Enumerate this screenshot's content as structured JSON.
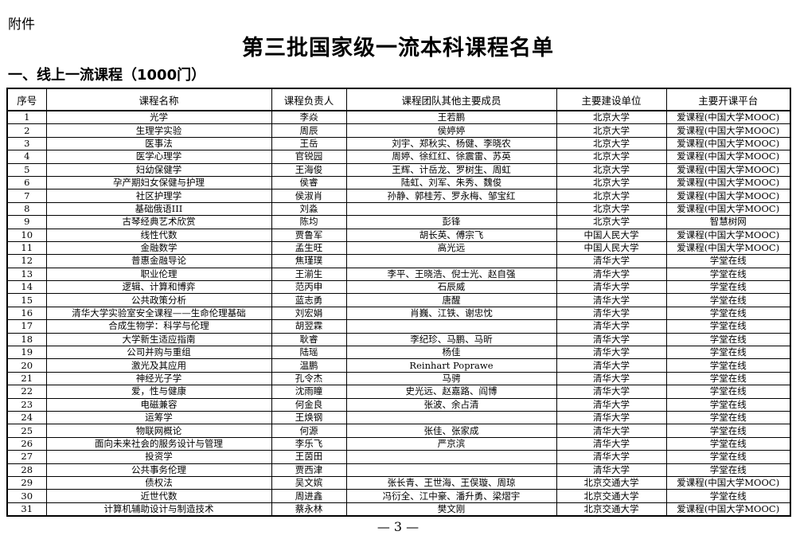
{
  "attachment_label": "附件",
  "title": "第三批国家级一流本科课程名单",
  "section_heading": "一、线上一流课程（1000门）",
  "table": {
    "headers": [
      "序号",
      "课程名称",
      "课程负责人",
      "课程团队其他主要成员",
      "主要建设单位",
      "主要开课平台"
    ],
    "rows": [
      [
        "1",
        "光学",
        "李焱",
        "王若鹏",
        "北京大学",
        "爱课程(中国大学MOOC)"
      ],
      [
        "2",
        "生理学实验",
        "周辰",
        "侯婷婷",
        "北京大学",
        "爱课程(中国大学MOOC)"
      ],
      [
        "3",
        "医事法",
        "王岳",
        "刘宇、郑秋实、杨健、李晓农",
        "北京大学",
        "爱课程(中国大学MOOC)"
      ],
      [
        "4",
        "医学心理学",
        "官锐园",
        "周婷、徐红红、徐震雷、苏英",
        "北京大学",
        "爱课程(中国大学MOOC)"
      ],
      [
        "5",
        "妇幼保健学",
        "王海俊",
        "王辉、计岳龙、罗树生、周虹",
        "北京大学",
        "爱课程(中国大学MOOC)"
      ],
      [
        "6",
        "孕产期妇女保健与护理",
        "侯睿",
        "陆虹、刘军、朱秀、魏俊",
        "北京大学",
        "爱课程(中国大学MOOC)"
      ],
      [
        "7",
        "社区护理学",
        "侯淑肖",
        "孙静、郭桂芳、罗永梅、邹宝红",
        "北京大学",
        "爱课程(中国大学MOOC)"
      ],
      [
        "8",
        "基础俄语III",
        "刘淼",
        "",
        "北京大学",
        "爱课程(中国大学MOOC)"
      ],
      [
        "9",
        "古琴经典艺术欣赏",
        "陈均",
        "彭锋",
        "北京大学",
        "智慧树网"
      ],
      [
        "10",
        "线性代数",
        "贾鲁军",
        "胡长英、傅宗飞",
        "中国人民大学",
        "爱课程(中国大学MOOC)"
      ],
      [
        "11",
        "金融数学",
        "孟生旺",
        "高光远",
        "中国人民大学",
        "爱课程(中国大学MOOC)"
      ],
      [
        "12",
        "普惠金融导论",
        "焦瑾璞",
        "",
        "清华大学",
        "学堂在线"
      ],
      [
        "13",
        "职业伦理",
        "王湔生",
        "李平、王晓浩、倪士光、赵自强",
        "清华大学",
        "学堂在线"
      ],
      [
        "14",
        "逻辑、计算和博弈",
        "范丙申",
        "石辰威",
        "清华大学",
        "学堂在线"
      ],
      [
        "15",
        "公共政策分析",
        "蓝志勇",
        "唐醒",
        "清华大学",
        "学堂在线"
      ],
      [
        "16",
        "清华大学实验室安全课程——生命伦理基础",
        "刘宏娟",
        "肖巍、江铁、谢忠忱",
        "清华大学",
        "学堂在线"
      ],
      [
        "17",
        "合成生物学：科学与伦理",
        "胡翌霖",
        "",
        "清华大学",
        "学堂在线"
      ],
      [
        "18",
        "大学新生适应指南",
        "耿睿",
        "李纪珍、马鹏、马昕",
        "清华大学",
        "学堂在线"
      ],
      [
        "19",
        "公司并购与重组",
        "陆瑶",
        "杨佳",
        "清华大学",
        "学堂在线"
      ],
      [
        "20",
        "激光及其应用",
        "温鹏",
        "Reinhart Poprawe",
        "清华大学",
        "学堂在线"
      ],
      [
        "21",
        "神经光子学",
        "孔令杰",
        "马骋",
        "清华大学",
        "学堂在线"
      ],
      [
        "22",
        "爱，性与健康",
        "沈雨瞳",
        "史光远、赵嘉路、阎博",
        "清华大学",
        "学堂在线"
      ],
      [
        "23",
        "电磁兼容",
        "何金良",
        "张波、余占清",
        "清华大学",
        "学堂在线"
      ],
      [
        "24",
        "运筹学",
        "王焕钢",
        "",
        "清华大学",
        "学堂在线"
      ],
      [
        "25",
        "物联网概论",
        "何源",
        "张佳、张家成",
        "清华大学",
        "学堂在线"
      ],
      [
        "26",
        "面向未来社会的服务设计与管理",
        "李乐飞",
        "严京滨",
        "清华大学",
        "学堂在线"
      ],
      [
        "27",
        "投资学",
        "王茵田",
        "",
        "清华大学",
        "学堂在线"
      ],
      [
        "28",
        "公共事务伦理",
        "贾西津",
        "",
        "清华大学",
        "学堂在线"
      ],
      [
        "29",
        "债权法",
        "吴文嫔",
        "张长青、王世海、王俣璇、周琼",
        "北京交通大学",
        "爱课程(中国大学MOOC)"
      ],
      [
        "30",
        "近世代数",
        "周进鑫",
        "冯衍全、江中豪、潘升勇、梁熠宇",
        "北京交通大学",
        "学堂在线"
      ],
      [
        "31",
        "计算机辅助设计与制造技术",
        "蔡永林",
        "樊文刚",
        "北京交通大学",
        "爱课程(中国大学MOOC)"
      ]
    ]
  },
  "page_number": "— 3 —"
}
